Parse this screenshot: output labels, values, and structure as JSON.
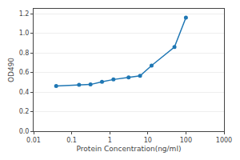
{
  "chart_data": {
    "type": "line",
    "x": [
      0.0391,
      0.1563,
      0.3125,
      0.625,
      1.25,
      3.125,
      6.25,
      12.5,
      50,
      100
    ],
    "values": [
      0.462,
      0.473,
      0.477,
      0.505,
      0.528,
      0.55,
      0.565,
      0.67,
      0.86,
      1.16
    ],
    "xlabel": "Protein Concentration(ng/ml)",
    "ylabel": "OD490",
    "log": "x",
    "xlim": [
      0.01,
      1000
    ],
    "xticks": [
      0.01,
      0.1,
      1,
      10,
      100,
      1000
    ],
    "ylim": [
      0.0,
      1.25
    ],
    "yticks": [
      {
        "value": 0.0,
        "label": "0.0"
      },
      0.2,
      0.4,
      0.6,
      0.8,
      {
        "value": 1.0,
        "label": "1.0"
      },
      1.2
    ],
    "grid": "y",
    "marker": "circle"
  }
}
